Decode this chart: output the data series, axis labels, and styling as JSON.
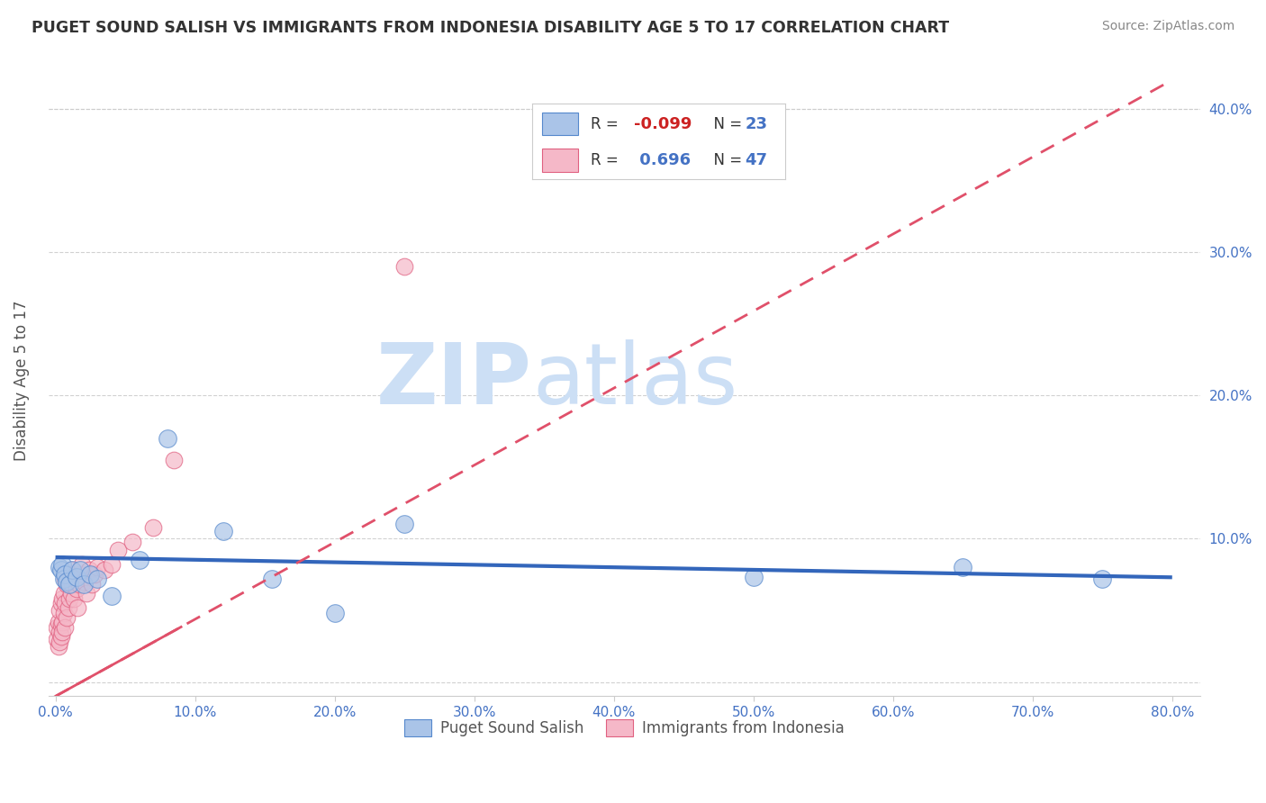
{
  "title": "PUGET SOUND SALISH VS IMMIGRANTS FROM INDONESIA DISABILITY AGE 5 TO 17 CORRELATION CHART",
  "source": "Source: ZipAtlas.com",
  "ylabel": "Disability Age 5 to 17",
  "ytick_values": [
    0.0,
    0.1,
    0.2,
    0.3,
    0.4
  ],
  "xtick_values": [
    0.0,
    0.1,
    0.2,
    0.3,
    0.4,
    0.5,
    0.6,
    0.7,
    0.8
  ],
  "xlim": [
    -0.005,
    0.82
  ],
  "ylim": [
    -0.01,
    0.43
  ],
  "series1_name": "Puget Sound Salish",
  "series1_color": "#aac4e8",
  "series1_edge_color": "#5588cc",
  "series1_line_color": "#3366bb",
  "series1_R": -0.099,
  "series1_N": 23,
  "series2_name": "Immigrants from Indonesia",
  "series2_color": "#f5b8c8",
  "series2_edge_color": "#e06080",
  "series2_line_color": "#e0506a",
  "series2_R": 0.696,
  "series2_N": 47,
  "watermark_zip": "ZIP",
  "watermark_atlas": "atlas",
  "watermark_color": "#ccdff5",
  "blue_scatter_x": [
    0.003,
    0.004,
    0.005,
    0.006,
    0.007,
    0.008,
    0.01,
    0.012,
    0.015,
    0.018,
    0.02,
    0.025,
    0.03,
    0.04,
    0.06,
    0.08,
    0.12,
    0.155,
    0.2,
    0.25,
    0.5,
    0.65,
    0.75
  ],
  "blue_scatter_y": [
    0.08,
    0.078,
    0.082,
    0.072,
    0.075,
    0.07,
    0.068,
    0.078,
    0.073,
    0.078,
    0.068,
    0.075,
    0.072,
    0.06,
    0.085,
    0.17,
    0.105,
    0.072,
    0.048,
    0.11,
    0.073,
    0.08,
    0.072
  ],
  "pink_scatter_x": [
    0.001,
    0.001,
    0.002,
    0.002,
    0.003,
    0.003,
    0.003,
    0.004,
    0.004,
    0.004,
    0.005,
    0.005,
    0.005,
    0.006,
    0.006,
    0.007,
    0.007,
    0.007,
    0.008,
    0.008,
    0.009,
    0.009,
    0.01,
    0.01,
    0.011,
    0.011,
    0.012,
    0.013,
    0.014,
    0.015,
    0.016,
    0.017,
    0.018,
    0.019,
    0.02,
    0.022,
    0.024,
    0.026,
    0.028,
    0.03,
    0.035,
    0.04,
    0.045,
    0.055,
    0.07,
    0.085,
    0.25
  ],
  "pink_scatter_y": [
    0.03,
    0.038,
    0.025,
    0.042,
    0.035,
    0.05,
    0.028,
    0.04,
    0.055,
    0.032,
    0.042,
    0.058,
    0.035,
    0.048,
    0.062,
    0.038,
    0.055,
    0.072,
    0.045,
    0.068,
    0.052,
    0.07,
    0.058,
    0.075,
    0.062,
    0.078,
    0.068,
    0.058,
    0.072,
    0.065,
    0.052,
    0.068,
    0.075,
    0.082,
    0.07,
    0.062,
    0.078,
    0.068,
    0.075,
    0.08,
    0.078,
    0.082,
    0.092,
    0.098,
    0.108,
    0.155,
    0.29
  ],
  "blue_trend_x": [
    0.0,
    0.8
  ],
  "blue_trend_y": [
    0.087,
    0.073
  ],
  "pink_trend_x": [
    0.0,
    0.8
  ],
  "pink_trend_y": [
    -0.01,
    0.42
  ],
  "background_color": "#ffffff",
  "grid_color": "#cccccc",
  "title_color": "#333333",
  "axis_color": "#4472c4",
  "legend_R_color": "#cc2222",
  "legend_N_color": "#4472c4",
  "legend_label_color": "#333333"
}
